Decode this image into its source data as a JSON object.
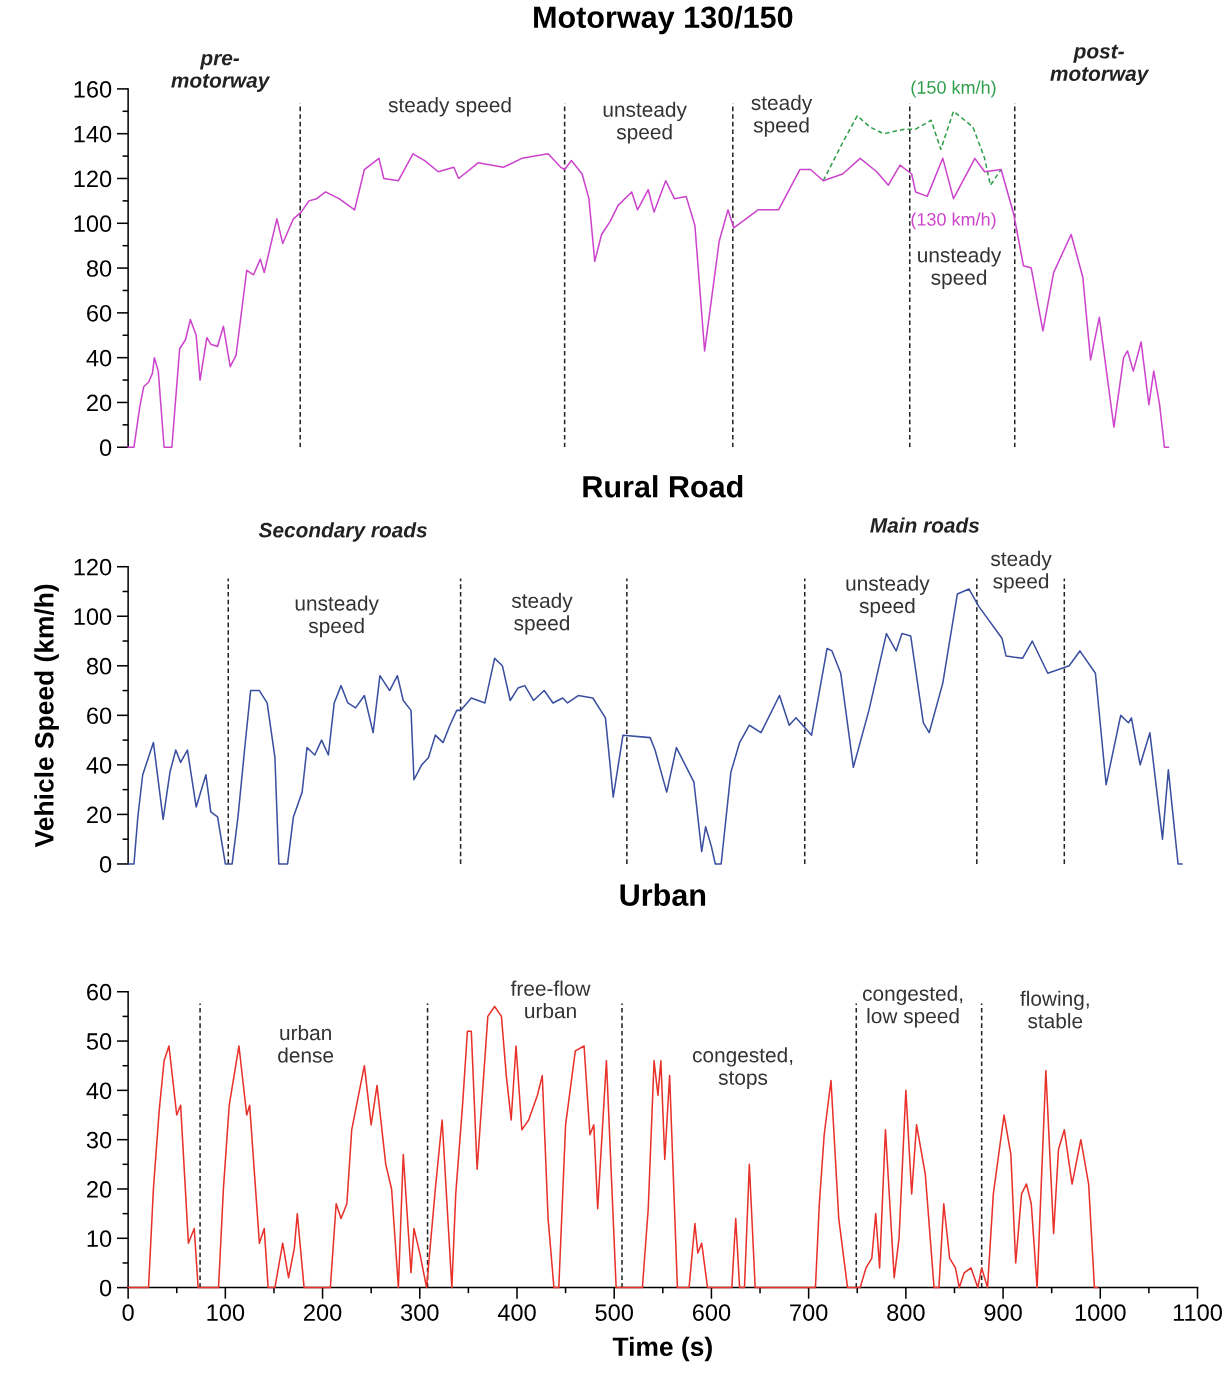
{
  "chart_data": [
    {
      "type": "line",
      "title": "Motorway 130/150",
      "xlim": [
        0,
        1100
      ],
      "ylim": [
        0,
        160
      ],
      "tick_labels": "y",
      "legend": false,
      "grid": false,
      "yticks": [
        0,
        {
          "value": 10,
          "label": null
        },
        20,
        {
          "value": 30,
          "label": null
        },
        40,
        {
          "value": 50,
          "label": null
        },
        60,
        {
          "value": 70,
          "label": null
        },
        80,
        {
          "value": 90,
          "label": null
        },
        100,
        {
          "value": 110,
          "label": null
        },
        120,
        {
          "value": 130,
          "label": null
        },
        140,
        {
          "value": 150,
          "label": null
        },
        160
      ],
      "x": [
        0,
        6,
        12,
        16,
        21,
        25,
        27,
        31,
        37,
        45,
        53,
        59,
        64,
        70,
        74,
        81,
        85,
        92,
        98,
        105,
        111,
        122,
        129,
        136,
        140,
        153,
        159,
        170,
        178,
        186,
        194,
        203,
        217,
        233,
        243,
        258,
        263,
        278,
        293,
        305,
        319,
        335,
        340,
        360,
        386,
        405,
        432,
        445,
        449,
        456,
        467,
        474,
        480,
        487,
        496,
        504,
        518,
        524,
        535,
        541,
        553,
        562,
        574,
        583,
        593,
        608,
        617,
        623,
        648,
        669,
        691,
        702,
        715,
        735,
        753,
        770,
        782,
        794,
        806,
        810,
        822,
        838,
        849,
        871,
        881,
        898,
        911,
        921,
        929,
        941,
        952,
        970,
        982,
        990,
        999,
        1014,
        1024,
        1028,
        1034,
        1042,
        1050,
        1055,
        1061,
        1066,
        1070
      ],
      "series": [
        {
          "name": "(150 km/h)",
          "color": "#2e9e4a",
          "line_style": "dashed",
          "x": [
            715,
            735,
            750,
            763,
            777,
            799,
            810,
            826,
            836,
            849,
            869,
            881,
            887,
            898
          ],
          "values": [
            119,
            136,
            148,
            143,
            140,
            142,
            142,
            146,
            133,
            150,
            143,
            129,
            117,
            124
          ]
        },
        {
          "name": "(130 km/h)",
          "color": "#cc44cc",
          "line_style": "solid",
          "values": [
            0,
            0,
            18,
            27,
            29,
            33,
            40,
            34,
            0,
            0,
            44,
            48,
            57,
            50,
            30,
            49,
            46,
            45,
            54,
            36,
            41,
            79,
            77,
            84,
            78,
            102,
            91,
            102,
            105,
            110,
            111,
            114,
            111,
            106,
            124,
            129,
            120,
            119,
            131,
            128,
            123,
            125,
            120,
            127,
            125,
            129,
            131,
            125,
            124,
            128,
            122,
            111,
            83,
            95,
            101,
            108,
            114,
            106,
            115,
            105,
            119,
            111,
            112,
            99,
            43,
            92,
            106,
            98,
            106,
            106,
            124,
            124,
            119,
            122,
            129,
            123,
            117,
            126,
            122,
            114,
            112,
            129,
            111,
            129,
            123,
            124,
            104,
            81,
            80,
            52,
            78,
            95,
            76,
            39,
            58,
            9,
            40,
            43,
            34,
            47,
            19,
            34,
            19,
            0,
            0
          ]
        }
      ],
      "ref_lines": [
        {
          "axis": "x",
          "value": 177,
          "line_style": "dashed",
          "color": "#222222"
        },
        {
          "axis": "x",
          "value": 449,
          "line_style": "dashed",
          "color": "#222222"
        },
        {
          "axis": "x",
          "value": 622,
          "line_style": "dashed",
          "color": "#222222"
        },
        {
          "axis": "x",
          "value": 804,
          "line_style": "dashed",
          "color": "#222222"
        },
        {
          "axis": "x",
          "value": 912,
          "line_style": "dashed",
          "color": "#222222"
        }
      ],
      "annotations": [
        "pre-\nmotorway",
        "steady speed",
        "unsteady\nspeed",
        "steady\nspeed",
        "unsteady\nspeed",
        "post-\nmotorway"
      ]
    },
    {
      "type": "line",
      "title": "Rural Road",
      "ylabel": "Vehicle Speed (km/h)",
      "xlim": [
        0,
        1100
      ],
      "ylim": [
        0,
        120
      ],
      "tick_labels": "y",
      "legend": false,
      "grid": false,
      "yticks": [
        0,
        {
          "value": 10,
          "label": null
        },
        20,
        {
          "value": 30,
          "label": null
        },
        40,
        {
          "value": 50,
          "label": null
        },
        60,
        {
          "value": 70,
          "label": null
        },
        80,
        {
          "value": 90,
          "label": null
        },
        100,
        {
          "value": 110,
          "label": null
        },
        120
      ],
      "x": [
        0,
        6,
        10,
        15,
        26,
        36,
        43,
        49,
        54,
        61,
        70,
        80,
        85,
        92,
        100,
        107,
        113,
        120,
        126,
        135,
        143,
        151,
        155,
        164,
        170,
        179,
        184,
        192,
        199,
        206,
        212,
        219,
        226,
        234,
        243,
        252,
        259,
        269,
        277,
        283,
        291,
        294,
        302,
        309,
        316,
        324,
        331,
        338,
        342,
        353,
        367,
        377,
        385,
        393,
        401,
        408,
        417,
        428,
        437,
        447,
        452,
        463,
        478,
        491,
        499,
        509,
        537,
        542,
        554,
        564,
        582,
        590,
        594,
        600,
        604,
        610,
        620,
        629,
        639,
        651,
        670,
        680,
        687,
        703,
        719,
        724,
        733,
        746,
        762,
        780,
        790,
        796,
        805,
        818,
        824,
        838,
        853,
        865,
        875,
        899,
        903,
        920,
        930,
        946,
        968,
        979,
        995,
        1006,
        1021,
        1029,
        1032,
        1041,
        1051,
        1064,
        1070,
        1080,
        1084
      ],
      "series": [
        {
          "color": "#3a4fa0",
          "line_style": "solid",
          "values": [
            0,
            0,
            19,
            36,
            49,
            18,
            37,
            46,
            41,
            46,
            23,
            36,
            21,
            19,
            0,
            0,
            19,
            47,
            70,
            70,
            65,
            43,
            0,
            0,
            19,
            29,
            47,
            44,
            50,
            44,
            65,
            72,
            65,
            63,
            68,
            53,
            76,
            70,
            76,
            66,
            62,
            34,
            40,
            43,
            52,
            49,
            56,
            62,
            62,
            67,
            65,
            83,
            80,
            66,
            71,
            72,
            66,
            70,
            65,
            67,
            65,
            68,
            67,
            59,
            27,
            52,
            51,
            46,
            29,
            47,
            33,
            5,
            15,
            7,
            0,
            0,
            37,
            49,
            56,
            53,
            68,
            56,
            59,
            52,
            87,
            86,
            77,
            39,
            62,
            93,
            86,
            93,
            92,
            57,
            53,
            73,
            109,
            111,
            104,
            91,
            84,
            83,
            90,
            77,
            80,
            86,
            77,
            32,
            60,
            57,
            59,
            40,
            53,
            10,
            38,
            0,
            0
          ]
        }
      ],
      "ref_lines": [
        {
          "axis": "x",
          "value": 103,
          "line_style": "dashed",
          "color": "#222222"
        },
        {
          "axis": "x",
          "value": 342,
          "line_style": "dashed",
          "color": "#222222"
        },
        {
          "axis": "x",
          "value": 513,
          "line_style": "dashed",
          "color": "#222222"
        },
        {
          "axis": "x",
          "value": 696,
          "line_style": "dashed",
          "color": "#222222"
        },
        {
          "axis": "x",
          "value": 873,
          "line_style": "dashed",
          "color": "#222222"
        },
        {
          "axis": "x",
          "value": 963,
          "line_style": "dashed",
          "color": "#222222"
        }
      ],
      "annotations": [
        "Secondary roads",
        "unsteady\nspeed",
        "steady\nspeed",
        "Main roads",
        "unsteady\nspeed",
        "steady\nspeed"
      ]
    },
    {
      "type": "line",
      "title": "Urban",
      "xlabel": "Time (s)",
      "xlim": [
        0,
        1100
      ],
      "ylim": [
        0,
        60
      ],
      "legend": false,
      "grid": false,
      "xticks": [
        0,
        {
          "value": 50,
          "label": null
        },
        100,
        {
          "value": 150,
          "label": null
        },
        200,
        {
          "value": 250,
          "label": null
        },
        300,
        {
          "value": 350,
          "label": null
        },
        400,
        {
          "value": 450,
          "label": null
        },
        500,
        {
          "value": 550,
          "label": null
        },
        600,
        {
          "value": 650,
          "label": null
        },
        700,
        {
          "value": 750,
          "label": null
        },
        800,
        {
          "value": 850,
          "label": null
        },
        900,
        {
          "value": 950,
          "label": null
        },
        1000,
        {
          "value": 1050,
          "label": null
        },
        1100
      ],
      "yticks": [
        0,
        {
          "value": 5,
          "label": null
        },
        10,
        {
          "value": 15,
          "label": null
        },
        20,
        {
          "value": 25,
          "label": null
        },
        30,
        {
          "value": 35,
          "label": null
        },
        40,
        {
          "value": 45,
          "label": null
        },
        50,
        {
          "value": 55,
          "label": null
        },
        60
      ],
      "x": [
        0,
        21,
        26,
        32,
        37,
        42,
        50,
        54,
        62,
        68,
        72,
        93,
        98,
        104,
        114,
        122,
        125,
        135,
        140,
        144,
        151,
        159,
        165,
        171,
        174,
        181,
        208,
        214,
        219,
        225,
        230,
        236,
        243,
        250,
        256,
        265,
        271,
        278,
        283,
        291,
        294,
        300,
        307,
        316,
        323,
        333,
        337,
        344,
        349,
        353,
        359,
        370,
        377,
        384,
        389,
        394,
        399,
        405,
        412,
        421,
        426,
        432,
        438,
        443,
        450,
        460,
        469,
        475,
        479,
        483,
        492,
        502,
        529,
        535,
        541,
        545,
        548,
        552,
        557,
        565,
        577,
        583,
        586,
        590,
        596,
        621,
        625,
        629,
        634,
        639,
        645,
        707,
        711,
        716,
        723,
        731,
        740,
        753,
        759,
        765,
        769,
        773,
        779,
        788,
        793,
        800,
        806,
        811,
        820,
        829,
        834,
        839,
        845,
        851,
        855,
        860,
        867,
        874,
        878,
        884,
        890,
        901,
        908,
        913,
        919,
        924,
        929,
        935,
        944,
        952,
        957,
        963,
        971,
        980,
        988,
        994,
        997
      ],
      "series": [
        {
          "color": "#e8312a",
          "line_style": "solid",
          "values": [
            0,
            0,
            20,
            36,
            46,
            49,
            35,
            37,
            9,
            12,
            0,
            0,
            20,
            37,
            49,
            35,
            37,
            9,
            12,
            0,
            0,
            9,
            2,
            8,
            15,
            0,
            0,
            17,
            14,
            17,
            32,
            38,
            45,
            33,
            41,
            25,
            20,
            0,
            27,
            3,
            12,
            7,
            0,
            20,
            34,
            0,
            19,
            37,
            52,
            52,
            24,
            55,
            57,
            55,
            43,
            34,
            49,
            32,
            34,
            39,
            43,
            14,
            0,
            0,
            33,
            48,
            49,
            31,
            33,
            16,
            46,
            0,
            0,
            16,
            46,
            39,
            46,
            26,
            43,
            0,
            0,
            13,
            7,
            9,
            0,
            0,
            14,
            0,
            0,
            25,
            0,
            0,
            17,
            31,
            42,
            14,
            0,
            0,
            4,
            6,
            15,
            4,
            32,
            2,
            10,
            40,
            19,
            33,
            23,
            0,
            0,
            17,
            6,
            4,
            0,
            3,
            4,
            0,
            4,
            0,
            19,
            35,
            27,
            5,
            19,
            21,
            17,
            0,
            44,
            11,
            28,
            32,
            21,
            30,
            21,
            0,
            0
          ]
        }
      ],
      "ref_lines": [
        {
          "axis": "x",
          "value": 74,
          "line_style": "dashed",
          "color": "#222222"
        },
        {
          "axis": "x",
          "value": 308,
          "line_style": "dashed",
          "color": "#222222"
        },
        {
          "axis": "x",
          "value": 508,
          "line_style": "dashed",
          "color": "#222222"
        },
        {
          "axis": "x",
          "value": 749,
          "line_style": "dashed",
          "color": "#222222"
        },
        {
          "axis": "x",
          "value": 878,
          "line_style": "dashed",
          "color": "#222222"
        }
      ],
      "annotations": [
        "urban\ndense",
        "free-flow\nurban",
        "congested,\nstops",
        "congested,\nlow speed",
        "flowing,\nstable"
      ]
    }
  ]
}
